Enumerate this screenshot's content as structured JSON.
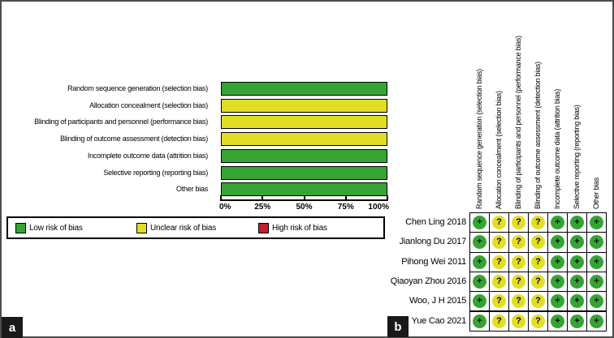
{
  "panels": {
    "a": "a",
    "b": "b"
  },
  "colors": {
    "low": "#36A435",
    "unclear": "#E2DE24",
    "high": "#C0202A",
    "frame": "#4d4d4d",
    "grid_line": "#000000"
  },
  "chart_data": [
    {
      "type": "bar",
      "orientation": "horizontal",
      "title": "",
      "xlabel": "",
      "ylabel": "",
      "categories": [
        "Random sequence generation (selection bias)",
        "Allocation concealment (selection bias)",
        "Blinding of participants and personnel (performance bias)",
        "Blinding of outcome assessment (detection bias)",
        "Incomplete outcome data (attrition bias)",
        "Selective reporting (reporting bias)",
        "Other bias"
      ],
      "series": [
        {
          "name": "Low risk of bias",
          "key": "low",
          "values": [
            100,
            0,
            0,
            0,
            100,
            100,
            100
          ]
        },
        {
          "name": "Unclear risk of bias",
          "key": "unclear",
          "values": [
            0,
            100,
            100,
            100,
            0,
            0,
            0
          ]
        },
        {
          "name": "High risk of bias",
          "key": "high",
          "values": [
            0,
            0,
            0,
            0,
            0,
            0,
            0
          ]
        }
      ],
      "x_ticks": [
        "0%",
        "25%",
        "50%",
        "75%",
        "100%"
      ],
      "xlim": [
        0,
        100
      ],
      "grid": false,
      "legend_position": "bottom"
    },
    {
      "type": "table",
      "columns": [
        "Random sequence generation (selection bias)",
        "Allocation concealment (selection bias)",
        "Blinding of participants and personnel (performance bias)",
        "Blinding of outcome assessment (detection bias)",
        "Incomplete outcome data (attrition bias)",
        "Selective reporting (reporting bias)",
        "Other bias"
      ],
      "rows": [
        {
          "study": "Chen Ling 2018",
          "judgements": [
            "low",
            "unclear",
            "unclear",
            "unclear",
            "low",
            "low",
            "low"
          ]
        },
        {
          "study": "Jianlong Du 2017",
          "judgements": [
            "low",
            "unclear",
            "unclear",
            "unclear",
            "low",
            "low",
            "low"
          ]
        },
        {
          "study": "Pihong Wei 2011",
          "judgements": [
            "low",
            "unclear",
            "unclear",
            "unclear",
            "low",
            "low",
            "low"
          ]
        },
        {
          "study": "Qiaoyan Zhou 2016",
          "judgements": [
            "low",
            "unclear",
            "unclear",
            "unclear",
            "low",
            "low",
            "low"
          ]
        },
        {
          "study": "Woo, J H 2015",
          "judgements": [
            "low",
            "unclear",
            "unclear",
            "unclear",
            "low",
            "low",
            "low"
          ]
        },
        {
          "study": "Yue Cao 2021",
          "judgements": [
            "low",
            "unclear",
            "unclear",
            "unclear",
            "low",
            "low",
            "low"
          ]
        }
      ],
      "symbols": {
        "low": "+",
        "unclear": "?",
        "high": "-"
      }
    }
  ],
  "legend": {
    "items": [
      {
        "label": "Low risk of bias",
        "key": "low"
      },
      {
        "label": "Unclear risk of bias",
        "key": "unclear"
      },
      {
        "label": "High risk of bias",
        "key": "high"
      }
    ]
  }
}
